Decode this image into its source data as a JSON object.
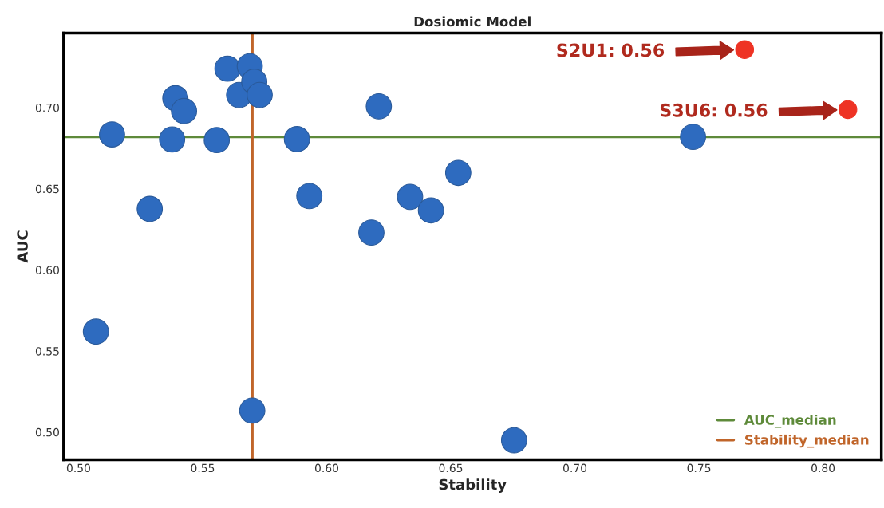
{
  "chart_data": {
    "type": "scatter",
    "title": "Dosiomic Model",
    "xlabel": "Stability",
    "ylabel": "AUC",
    "xlim": [
      0.494,
      0.8235
    ],
    "ylim": [
      0.483,
      0.746
    ],
    "xticks": [
      {
        "value": 0.5,
        "label": "0.50"
      },
      {
        "value": 0.55,
        "label": "0.55"
      },
      {
        "value": 0.6,
        "label": "0.60"
      },
      {
        "value": 0.65,
        "label": "0.65"
      },
      {
        "value": 0.7,
        "label": "0.70"
      },
      {
        "value": 0.75,
        "label": "0.75"
      },
      {
        "value": 0.8,
        "label": "0.80"
      }
    ],
    "yticks": [
      {
        "value": 0.5,
        "label": "0.50"
      },
      {
        "value": 0.55,
        "label": "0.55"
      },
      {
        "value": 0.6,
        "label": "0.60"
      },
      {
        "value": 0.65,
        "label": "0.65"
      },
      {
        "value": 0.7,
        "label": "0.70"
      }
    ],
    "marker": "circle",
    "grid": false,
    "legend": "bottom right",
    "series": [
      {
        "color": "#2e6bbf",
        "x": [
          0.507,
          0.5135,
          0.5287,
          0.539,
          0.5377,
          0.5425,
          0.5557,
          0.56,
          0.5647,
          0.569,
          0.5708,
          0.573,
          0.57,
          0.588,
          0.593,
          0.621,
          0.618,
          0.6336,
          0.642,
          0.653,
          0.6755,
          0.7476
        ],
        "values": [
          0.562,
          0.6835,
          0.6376,
          0.7058,
          0.6804,
          0.6979,
          0.68,
          0.724,
          0.7078,
          0.7255,
          0.716,
          0.7078,
          0.5133,
          0.6806,
          0.6455,
          0.7008,
          0.623,
          0.645,
          0.6367,
          0.6598,
          0.495,
          0.682
        ]
      },
      {
        "color": "#ee3324",
        "x": [
          0.7684,
          0.81
        ],
        "values": [
          0.7358,
          0.6988
        ]
      }
    ],
    "ref_lines": [
      {
        "axis": "y",
        "value": 0.682,
        "label": "AUC_median",
        "color": "#5e8a3a"
      },
      {
        "axis": "x",
        "value": 0.57,
        "label": "Stability_median",
        "color": "#c0652a"
      }
    ],
    "annotations": [
      "S2U1: 0.56",
      "S3U6: 0.56"
    ]
  }
}
